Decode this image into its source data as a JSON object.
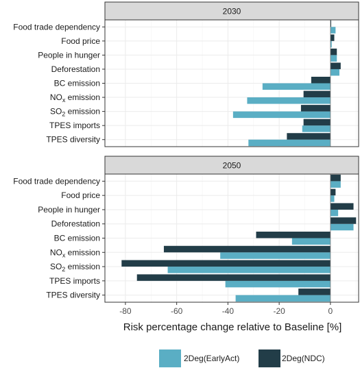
{
  "chart_data": {
    "type": "bar",
    "orientation": "horizontal",
    "xlabel": "Risk percentage change relative to Baseline [%]",
    "xlim": [
      -88,
      11
    ],
    "xticks": [
      -80,
      -60,
      -40,
      -20,
      0
    ],
    "grid": true,
    "legend_position": "bottom-right",
    "categories": [
      {
        "main": "Food trade dependency",
        "sub": ""
      },
      {
        "main": "Food price",
        "sub": ""
      },
      {
        "main": "People in hunger",
        "sub": ""
      },
      {
        "main": "Deforestation",
        "sub": ""
      },
      {
        "main": "BC emission",
        "sub": ""
      },
      {
        "main": "NO",
        "sub": "x",
        "rest": " emission"
      },
      {
        "main": "SO",
        "sub": "2",
        "rest": " emission"
      },
      {
        "main": "TPES imports",
        "sub": ""
      },
      {
        "main": "TPES diversity",
        "sub": ""
      }
    ],
    "series": [
      {
        "name": "2Deg(EarlyAct)",
        "color": "#5aaec4"
      },
      {
        "name": "2Deg(NDC)",
        "color": "#223d48"
      }
    ],
    "panels": [
      {
        "title": "2030",
        "values": {
          "2Deg(EarlyAct)": [
            2,
            0.5,
            2.5,
            3.5,
            -26.5,
            -32.5,
            -38,
            -11,
            -32
          ],
          "2Deg(NDC)": [
            0.3,
            1.5,
            2.5,
            4,
            -7.5,
            -10.5,
            -11.5,
            -10.5,
            -17
          ]
        }
      },
      {
        "title": "2050",
        "values": {
          "2Deg(EarlyAct)": [
            4,
            1.5,
            3,
            9,
            -15,
            -43,
            -63.5,
            -41,
            -37
          ],
          "2Deg(NDC)": [
            4,
            2,
            9,
            10,
            -29,
            -65,
            -81.5,
            -75.5,
            -12.5
          ]
        }
      }
    ]
  }
}
